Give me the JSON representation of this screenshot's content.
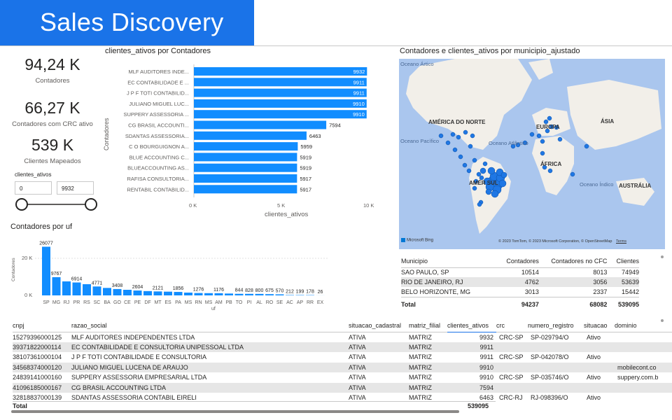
{
  "banner": {
    "title": "Sales Discovery"
  },
  "kpis": [
    {
      "value": "94,24 K",
      "label": "Contadores"
    },
    {
      "value": "66,27 K",
      "label": "Contadores com CRC ativo"
    },
    {
      "value": "539 K",
      "label": "Clientes Mapeados"
    }
  ],
  "slicer": {
    "title": "clientes_ativos",
    "min": "0",
    "max": "9932"
  },
  "hbar": {
    "title": "clientes_ativos por Contadores",
    "ylabel": "Contadores",
    "xlabel": "clientes_ativos",
    "xticks": [
      "0 K",
      "5 K",
      "10 K"
    ]
  },
  "column": {
    "title": "Contadores por uf",
    "ylabel": "Contadores",
    "xlabel": "uf",
    "yticks": [
      "20 K",
      "0 K"
    ]
  },
  "chart_data": [
    {
      "type": "bar",
      "orientation": "horizontal",
      "title": "clientes_ativos por Contadores",
      "xlabel": "clientes_ativos",
      "ylabel": "Contadores",
      "xlim": [
        0,
        10000
      ],
      "categories": [
        "MLF AUDITORES INDE...",
        "EC CONTABILIDADE E ...",
        "J P F TOTI CONTABILID...",
        "JULIANO MIGUEL LUC...",
        "SUPPERY ASSESSORIA ...",
        "CG BRASIL ACCOUNTI...",
        "SDANTAS ASSESSORIA...",
        "C O BOURGUIGNON A...",
        "BLUE ACCOUNTING C...",
        "BLUEACCOUNTING AS...",
        "RAFISA CONSULTORIA...",
        "RENTABIL CONTABILID..."
      ],
      "values": [
        9932,
        9911,
        9911,
        9910,
        9910,
        7594,
        6463,
        5959,
        5919,
        5919,
        5917,
        5917
      ],
      "bar_color": "#118dff"
    },
    {
      "type": "bar",
      "title": "Contadores por uf",
      "xlabel": "uf",
      "ylabel": "Contadores",
      "ylim": [
        0,
        27000
      ],
      "categories": [
        "SP",
        "MG",
        "RJ",
        "PR",
        "RS",
        "SC",
        "BA",
        "GO",
        "CE",
        "PE",
        "DF",
        "MT",
        "ES",
        "PA",
        "MS",
        "RN",
        "MS",
        "AM",
        "PB",
        "TO",
        "PI",
        "AL",
        "RO",
        "SE",
        "AC",
        "AP",
        "RR",
        "EX"
      ],
      "values": [
        26077,
        9767,
        7500,
        6914,
        6000,
        4771,
        4000,
        3408,
        3000,
        2604,
        2300,
        2121,
        2000,
        1856,
        1500,
        1276,
        1200,
        1176,
        1000,
        844,
        828,
        800,
        675,
        570,
        212,
        199,
        178,
        26
      ],
      "labels": [
        "26077",
        "9767",
        "",
        "6914",
        "",
        "4771",
        "",
        "3408",
        "",
        "2604",
        "",
        "2121",
        "",
        "1856",
        "",
        "1276",
        "",
        "1176",
        "",
        "844",
        "828",
        "800",
        "675",
        "570",
        "212",
        "199",
        "178",
        "26"
      ],
      "bar_color": "#118dff"
    }
  ],
  "map": {
    "title": "Contadores e clientes_ativos por municipio_ajustado",
    "labels": {
      "ocean_arctic": "Oceano Ártico",
      "north_america": "AMÉRICA DO NORTE",
      "europe": "EUROPA",
      "asia": "ÁSIA",
      "ocean_pacific": "Oceano Pacífico",
      "ocean_atlantic": "Oceano Atlântico",
      "africa": "ÁFRICA",
      "south_america": "AMÉR  SUL",
      "ocean_indian": "Oceano Índico",
      "australia": "AUSTRÁLIA"
    },
    "provider": "Microsoft Bing",
    "attribution": "© 2023 TomTom, © 2023 Microsoft Corporation, © OpenStreetMap",
    "terms": "Terms",
    "water_color": "#aac6ee",
    "land_color": "#f2efe9",
    "dot_color": "#1f77e4"
  },
  "city_table": {
    "headers": [
      "Municipio",
      "Contadores",
      "Contadores no CFC",
      "Clientes"
    ],
    "rows": [
      [
        "SAO PAULO, SP",
        "10514",
        "8013",
        "74949"
      ],
      [
        "RIO DE JANEIRO, RJ",
        "4762",
        "3056",
        "53639"
      ],
      [
        "BELO HORIZONTE, MG",
        "3013",
        "2337",
        "15442"
      ]
    ],
    "total": [
      "Total",
      "94237",
      "68082",
      "539095"
    ]
  },
  "detail_table": {
    "headers": [
      "cnpj",
      "razao_social",
      "situacao_cadastral",
      "matriz_filial",
      "clientes_ativos",
      "crc",
      "numero_registro",
      "situacao",
      "dominio"
    ],
    "rows": [
      [
        "15279396000125",
        "MLF AUDITORES INDEPENDENTES LTDA",
        "ATIVA",
        "MATRIZ",
        "9932",
        "CRC-SP",
        "SP-029794/O",
        "Ativo",
        ""
      ],
      [
        "39371822000114",
        "EC CONTABILIDADE E CONSULTORIA UNIPESSOAL LTDA",
        "ATIVA",
        "MATRIZ",
        "9911",
        "",
        "",
        "",
        ""
      ],
      [
        "38107361000104",
        "J P F TOTI CONTABILIDADE E CONSULTORIA",
        "ATIVA",
        "MATRIZ",
        "9911",
        "CRC-SP",
        "SP-042078/O",
        "Ativo",
        ""
      ],
      [
        "34568374000120",
        "JULIANO MIGUEL LUCENA DE ARAUJO",
        "ATIVA",
        "MATRIZ",
        "9910",
        "",
        "",
        "",
        "mobilecont.co"
      ],
      [
        "24839141000160",
        "SUPPERY ASSESSORIA EMPRESARIAL LTDA",
        "ATIVA",
        "MATRIZ",
        "9910",
        "CRC-SP",
        "SP-035746/O",
        "Ativo",
        "suppery.com.b"
      ],
      [
        "41096185000167",
        "CG BRASIL ACCOUNTING LTDA",
        "ATIVA",
        "MATRIZ",
        "7594",
        "",
        "",
        "",
        ""
      ],
      [
        "32818837000139",
        "SDANTAS ASSESSORIA CONTABIL EIRELI",
        "ATIVA",
        "MATRIZ",
        "6463",
        "CRC-RJ",
        "RJ-098396/O",
        "Ativo",
        ""
      ]
    ],
    "total": [
      "Total",
      "539095"
    ]
  }
}
